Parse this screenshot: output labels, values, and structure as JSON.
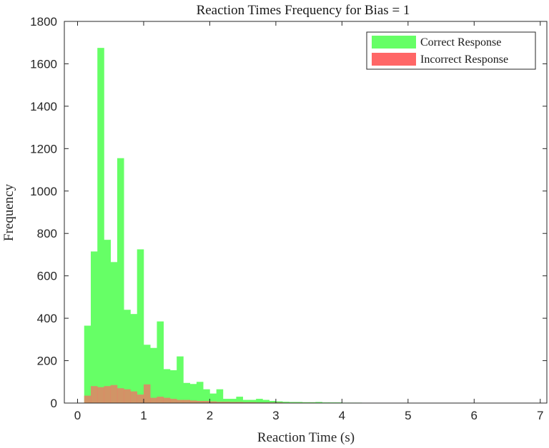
{
  "chart_data": {
    "type": "bar",
    "title": "Reaction Times Frequency for Bias = 1",
    "xlabel": "Reaction Time (s)",
    "ylabel": "Frequency",
    "xlim": [
      -0.2,
      7.1
    ],
    "ylim": [
      0,
      1800
    ],
    "xticks": [
      "0",
      "1",
      "2",
      "3",
      "4",
      "5",
      "6",
      "7"
    ],
    "yticks": [
      "0",
      "200",
      "400",
      "600",
      "800",
      "1000",
      "1200",
      "1400",
      "1600",
      "1800"
    ],
    "grid": false,
    "legend_position": "top-right",
    "bin_width": 0.1,
    "x": [
      0.1,
      0.2,
      0.3,
      0.4,
      0.5,
      0.6,
      0.7,
      0.8,
      0.9,
      1.0,
      1.1,
      1.2,
      1.3,
      1.4,
      1.5,
      1.6,
      1.7,
      1.8,
      1.9,
      2.0,
      2.1,
      2.2,
      2.3,
      2.4,
      2.5,
      2.6,
      2.7,
      2.8,
      2.9,
      3.0,
      3.1,
      3.2,
      3.3,
      3.4,
      3.5,
      3.6,
      3.7,
      3.8,
      3.9,
      4.0,
      4.1,
      4.2,
      4.3,
      4.4,
      4.5,
      4.6,
      4.7,
      4.8,
      4.9,
      5.0,
      5.1,
      5.2,
      5.3,
      5.4,
      5.5,
      5.6,
      5.7
    ],
    "series": [
      {
        "name": "Correct Response",
        "color": "#66ff66",
        "values": [
          365,
          715,
          1675,
          770,
          665,
          1155,
          440,
          420,
          725,
          275,
          260,
          385,
          160,
          155,
          220,
          95,
          90,
          100,
          65,
          45,
          65,
          20,
          20,
          30,
          15,
          15,
          20,
          15,
          10,
          8,
          6,
          5,
          5,
          4,
          4,
          5,
          3,
          3,
          3,
          2,
          2,
          2,
          1,
          1,
          1,
          1,
          1,
          1,
          1,
          1,
          1,
          1,
          1,
          1,
          1,
          1,
          1
        ]
      },
      {
        "name": "Incorrect Response",
        "color": "#ff6666",
        "values": [
          35,
          80,
          75,
          80,
          85,
          70,
          65,
          55,
          40,
          88,
          25,
          30,
          25,
          20,
          15,
          15,
          12,
          10,
          10,
          8,
          6,
          6,
          5,
          5,
          4,
          4,
          3,
          3,
          3,
          3,
          2,
          2,
          2,
          2,
          2,
          1,
          1,
          1,
          1,
          1,
          1,
          1,
          1,
          1,
          1,
          1,
          1,
          1,
          1,
          1,
          0,
          0,
          0,
          0,
          0,
          0,
          0
        ]
      }
    ]
  }
}
